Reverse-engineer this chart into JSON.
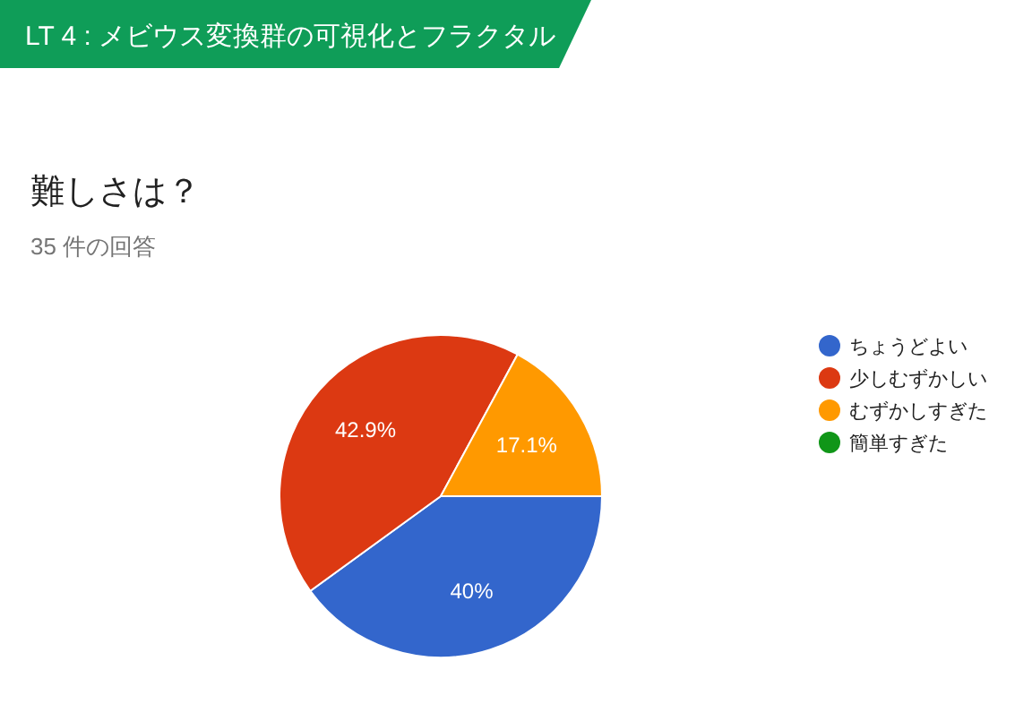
{
  "chart_data": {
    "type": "pie",
    "title": "LT 4 : メビウス変換群の可視化とフラクタル",
    "subtitle": "難しさは？",
    "annotations": [
      "35 件の回答"
    ],
    "categories": [
      "ちょうどよい",
      "少しむずかしい",
      "むずかしすぎた",
      "簡単すぎた"
    ],
    "values": [
      40,
      42.9,
      17.1,
      0
    ],
    "colors": [
      "#3366cc",
      "#dc3912",
      "#ff9900",
      "#109618"
    ],
    "value_labels": [
      "40%",
      "42.9%",
      "17.1%",
      null
    ],
    "legend": "right"
  }
}
